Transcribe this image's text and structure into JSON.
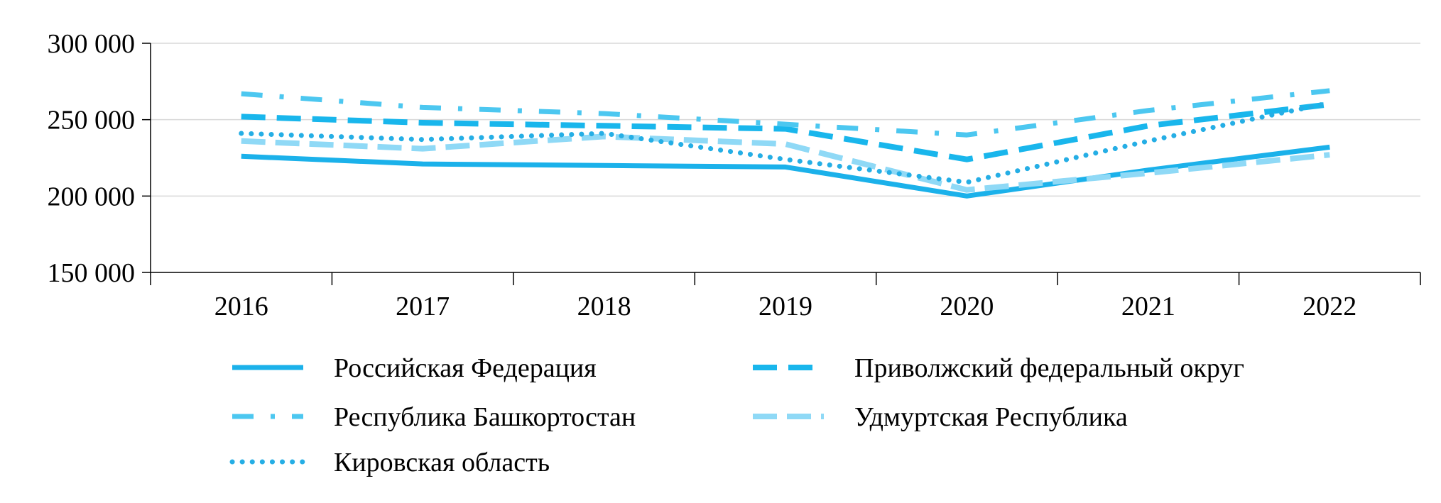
{
  "chart_data": {
    "type": "line",
    "title": "",
    "xlabel": "",
    "ylabel": "",
    "categories": [
      "2016",
      "2017",
      "2018",
      "2019",
      "2020",
      "2021",
      "2022"
    ],
    "ylim": [
      150000,
      300000
    ],
    "yticks": [
      150000,
      200000,
      250000,
      300000
    ],
    "ytick_labels": [
      "150 000",
      "200 000",
      "250 000",
      "300 000"
    ],
    "grid": "horizontal",
    "legend_position": "bottom",
    "series": [
      {
        "name": "Российская Федерация",
        "style": "solid",
        "color": "#1bb1ea",
        "values": [
          226000,
          221000,
          220000,
          219000,
          200000,
          217000,
          232000
        ]
      },
      {
        "name": "Приволжский федеральный округ",
        "style": "dashed",
        "color": "#19b6ec",
        "values": [
          252000,
          248000,
          246000,
          244000,
          224000,
          246000,
          260000
        ]
      },
      {
        "name": "Республика Башкортостан",
        "style": "dash-dot",
        "color": "#4cc7f0",
        "values": [
          267000,
          258000,
          254000,
          247000,
          240000,
          256000,
          269000
        ]
      },
      {
        "name": "Удмуртская Республика",
        "style": "dashed-light",
        "color": "#8fd9f6",
        "values": [
          236000,
          231000,
          239000,
          234000,
          204000,
          215000,
          227000
        ]
      },
      {
        "name": "Кировская область",
        "style": "dotted",
        "color": "#25aee5",
        "values": [
          241000,
          237000,
          241000,
          224000,
          209000,
          236000,
          261000
        ]
      }
    ]
  }
}
